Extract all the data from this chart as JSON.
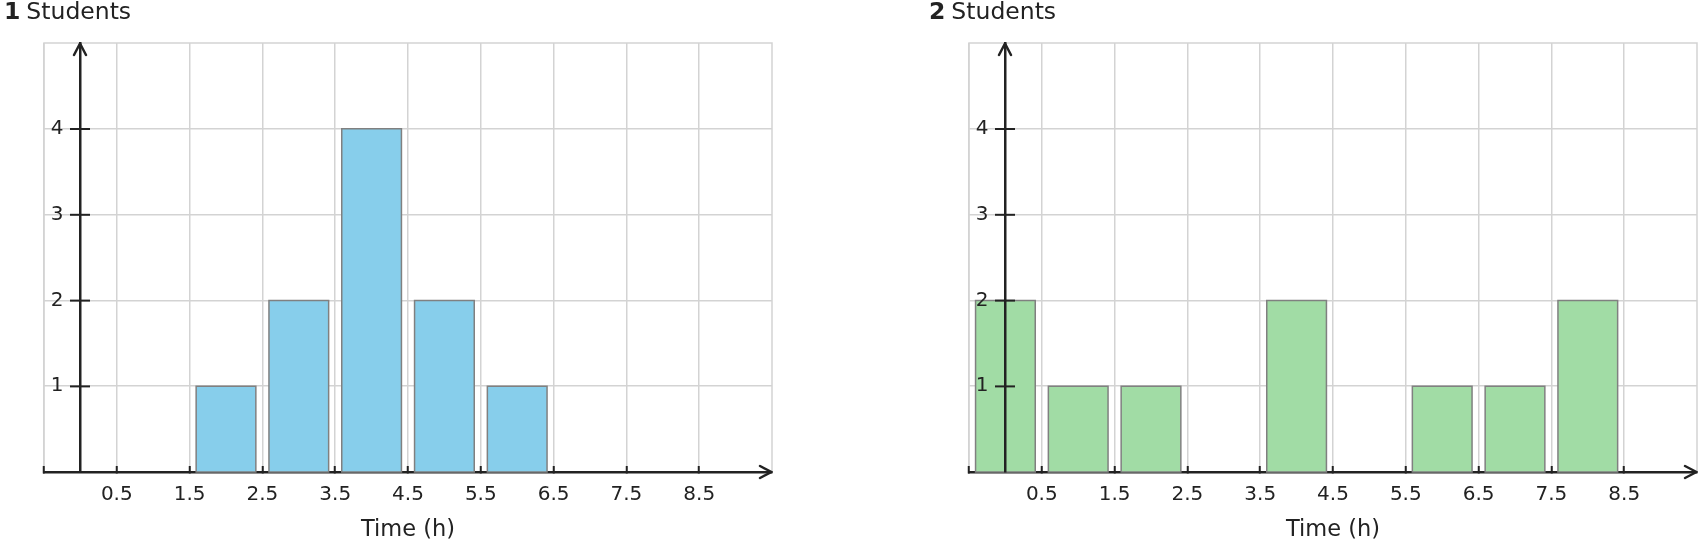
{
  "chart_data": [
    {
      "type": "histogram",
      "title": "1",
      "ylabel": "Students",
      "xlabel": "Time (h)",
      "bins": [
        1.5,
        2.5,
        3.5,
        4.5,
        5.5,
        6.5
      ],
      "values": [
        1,
        2,
        4,
        2,
        1
      ],
      "color": "#87ceeb",
      "xlim": [
        -0.5,
        9.5
      ],
      "ylim": [
        0,
        5
      ],
      "xticks": [
        {
          "value": -0.5,
          "label": null
        },
        0.5,
        1.5,
        2.5,
        3.5,
        4.5,
        5.5,
        6.5,
        7.5,
        8.5
      ],
      "yticks": [
        1,
        2,
        3,
        4
      ],
      "grid": true
    },
    {
      "type": "histogram",
      "title": "2",
      "ylabel": "Students",
      "xlabel": "Time (h)",
      "bins": [
        -0.5,
        0.5,
        1.5,
        2.5,
        3.5,
        4.5,
        5.5,
        6.5,
        7.5,
        8.5
      ],
      "values": [
        2,
        1,
        1,
        0,
        2,
        0,
        1,
        1,
        2
      ],
      "color": "#a1dca5",
      "xlim": [
        -0.5,
        9.5
      ],
      "ylim": [
        0,
        5
      ],
      "xticks": [
        {
          "value": -0.5,
          "label": null
        },
        0.5,
        1.5,
        2.5,
        3.5,
        4.5,
        5.5,
        6.5,
        7.5,
        8.5
      ],
      "yticks": [
        1,
        2,
        3,
        4
      ],
      "grid": true
    }
  ]
}
